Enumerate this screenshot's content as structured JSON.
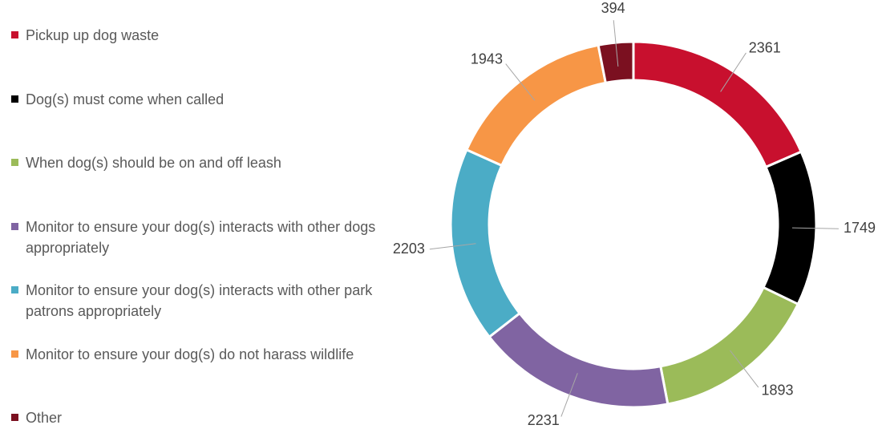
{
  "chart_data": {
    "type": "donut",
    "categories": [
      "Pickup up dog waste",
      "Dog(s) must come when called",
      "When dog(s) should be on and off leash",
      "Monitor to ensure your dog(s) interacts with other dogs appropriately",
      "Monitor to ensure your dog(s) interacts with other park patrons appropriately",
      "Monitor to ensure your dog(s) do not harass wildlife",
      "Other"
    ],
    "values": [
      2361,
      1749,
      1893,
      2231,
      2203,
      1943,
      394
    ],
    "colors": [
      "#c8102e",
      "#000000",
      "#9bbb59",
      "#8064a2",
      "#4bacc6",
      "#f79646",
      "#7b1020"
    ],
    "legend": "left"
  }
}
